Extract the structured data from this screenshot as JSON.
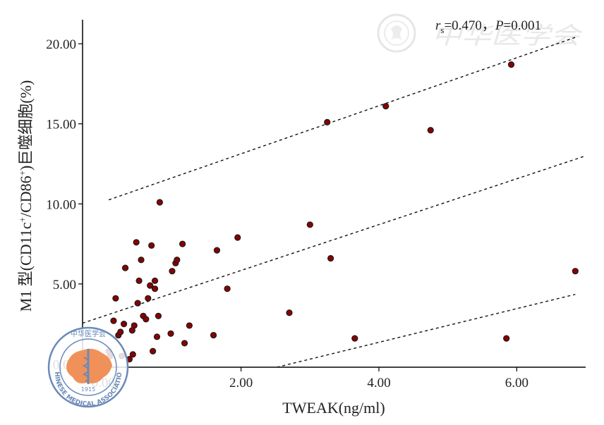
{
  "chart_data": {
    "type": "scatter",
    "title": "",
    "xlabel": "TWEAK(ng/ml)",
    "ylabel_prefix": "M1 型(CD11c",
    "ylabel_sup1": "+",
    "ylabel_mid": "/CD86",
    "ylabel_sup2": "+",
    "ylabel_suffix": ")巨噬细胞(%)",
    "stat_r": "r",
    "stat_r_sub": "s",
    "stat_rest": "=0.470，",
    "stat_p": "P",
    "stat_p_rest": "=0.001",
    "xlim": [
      -0.3,
      7.0
    ],
    "ylim": [
      -0.2,
      21.5
    ],
    "xticks": [
      0,
      2,
      4,
      6
    ],
    "xtick_labels": [
      "0.00",
      "2.00",
      "4.00",
      "6.00"
    ],
    "yticks": [
      0,
      5,
      10,
      15,
      20
    ],
    "ytick_labels": [
      "0.00",
      "5.00",
      "10.00",
      "15.00",
      "20.00"
    ],
    "points": [
      {
        "x": 0.08,
        "y": 0.8
      },
      {
        "x": 0.1,
        "y": 0.5
      },
      {
        "x": 0.15,
        "y": 2.7
      },
      {
        "x": 0.18,
        "y": 4.1
      },
      {
        "x": 0.22,
        "y": 1.8
      },
      {
        "x": 0.25,
        "y": 2.0
      },
      {
        "x": 0.27,
        "y": 0.5
      },
      {
        "x": 0.3,
        "y": 2.5
      },
      {
        "x": 0.32,
        "y": 6.0
      },
      {
        "x": 0.38,
        "y": 0.3
      },
      {
        "x": 0.42,
        "y": 2.1
      },
      {
        "x": 0.43,
        "y": 0.6
      },
      {
        "x": 0.45,
        "y": 2.4
      },
      {
        "x": 0.48,
        "y": 7.6
      },
      {
        "x": 0.5,
        "y": 3.8
      },
      {
        "x": 0.52,
        "y": 5.2
      },
      {
        "x": 0.55,
        "y": 6.5
      },
      {
        "x": 0.58,
        "y": 3.0
      },
      {
        "x": 0.62,
        "y": 2.8
      },
      {
        "x": 0.65,
        "y": 4.1
      },
      {
        "x": 0.68,
        "y": 4.9
      },
      {
        "x": 0.7,
        "y": 7.4
      },
      {
        "x": 0.72,
        "y": 0.8
      },
      {
        "x": 0.75,
        "y": 5.2
      },
      {
        "x": 0.75,
        "y": 4.7
      },
      {
        "x": 0.78,
        "y": 1.7
      },
      {
        "x": 0.8,
        "y": 3.0
      },
      {
        "x": 0.82,
        "y": 10.1
      },
      {
        "x": 0.98,
        "y": 1.9
      },
      {
        "x": 1.0,
        "y": 5.8
      },
      {
        "x": 1.05,
        "y": 6.3
      },
      {
        "x": 1.07,
        "y": 6.5
      },
      {
        "x": 1.15,
        "y": 7.5
      },
      {
        "x": 1.18,
        "y": 1.3
      },
      {
        "x": 1.25,
        "y": 2.4
      },
      {
        "x": 1.6,
        "y": 1.8
      },
      {
        "x": 1.65,
        "y": 7.1
      },
      {
        "x": 1.8,
        "y": 4.7
      },
      {
        "x": 1.95,
        "y": 7.9
      },
      {
        "x": 2.7,
        "y": 3.2
      },
      {
        "x": 3.0,
        "y": 8.7
      },
      {
        "x": 3.25,
        "y": 15.1
      },
      {
        "x": 3.3,
        "y": 6.6
      },
      {
        "x": 3.65,
        "y": 1.6
      },
      {
        "x": 4.1,
        "y": 16.1
      },
      {
        "x": 4.75,
        "y": 14.6
      },
      {
        "x": 5.85,
        "y": 1.6
      },
      {
        "x": 5.92,
        "y": 18.7
      },
      {
        "x": 6.85,
        "y": 5.8
      }
    ],
    "fit_lines": [
      {
        "name": "upper",
        "x": [
          0.08,
          6.85
        ],
        "y": [
          10.25,
          20.4
        ]
      },
      {
        "name": "center",
        "x": [
          -0.3,
          7.0
        ],
        "y": [
          2.55,
          13.0
        ]
      },
      {
        "name": "lower",
        "x": [
          2.52,
          6.85
        ],
        "y": [
          -0.2,
          4.35
        ]
      }
    ],
    "colors": {
      "point_fill": "#8b0000",
      "point_stroke": "#1a1a1a",
      "axis": "#000000",
      "line": "#111111",
      "watermark": "#e4e4e4",
      "logo_map": "#f0915a",
      "logo_ring": "#6a8ab8"
    }
  },
  "watermark_text": "中华医学会",
  "logo": {
    "top_text": "中华医学会",
    "ring_text": "CHINESE MEDICAL ASSOCIATION",
    "year": "1915"
  }
}
